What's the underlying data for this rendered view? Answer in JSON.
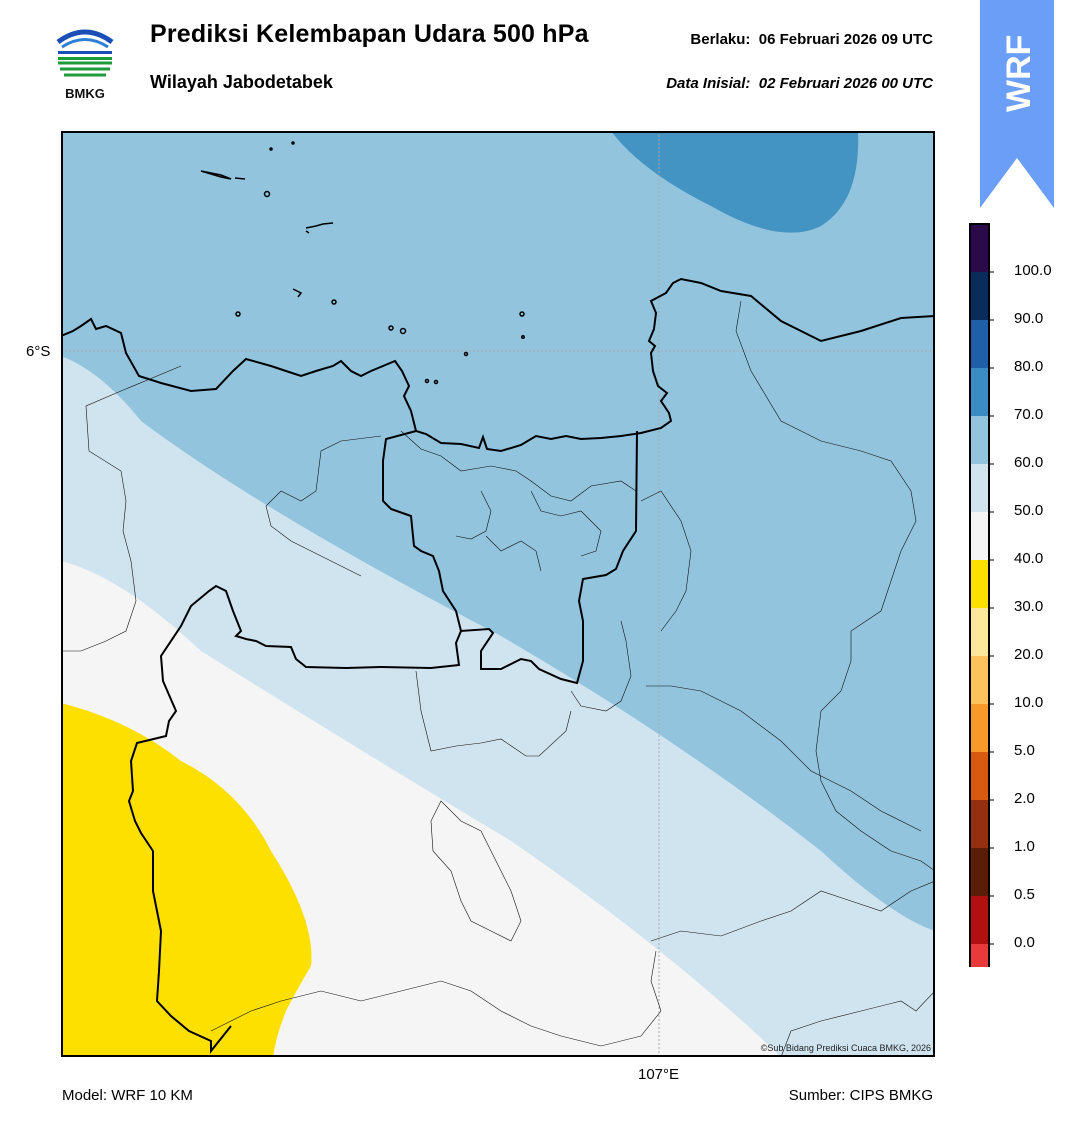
{
  "header": {
    "title": "Prediksi Kelembapan Udara 500 hPa",
    "subtitle": "Wilayah Jabodetabek",
    "valid_label": "Berlaku:  06 Februari 2026 09 UTC",
    "initial_label": "Data Inisial:  02 Februari 2026 00 UTC"
  },
  "logo": {
    "text": "BMKG",
    "icon": "bmkg-logo-icon"
  },
  "badge": {
    "text": "WRF",
    "color": "#6a9ef7"
  },
  "map": {
    "lat_label": "6°S",
    "lon_label": "107°E",
    "copyright": "©Sub Bidang Prediksi Cuaca BMKG, 2026"
  },
  "footer": {
    "model": "Model: WRF 10 KM",
    "source": "Sumber: CIPS BMKG"
  },
  "colorbar": {
    "ticks": [
      "100.0",
      "90.0",
      "80.0",
      "70.0",
      "60.0",
      "50.0",
      "40.0",
      "30.0",
      "20.0",
      "10.0",
      "5.0",
      "2.0",
      "1.0",
      "0.5",
      "0.0"
    ],
    "colors": [
      "#2b0a4a",
      "#0a2c5a",
      "#1f5fa8",
      "#3a8cc3",
      "#93c4de",
      "#d0e4f0",
      "#f5f5f5",
      "#fde000",
      "#fce79a",
      "#fcc25c",
      "#f79a2a",
      "#d85a10",
      "#943010",
      "#5a1e08",
      "#b01010",
      "#e83a3a"
    ]
  },
  "fields": {
    "colors": {
      "yellow": "#fde000",
      "white": "#f5f5f5",
      "light_blue": "#d0e4f0",
      "mid_blue": "#93c4de",
      "dark_blue": "#4393c3"
    }
  }
}
